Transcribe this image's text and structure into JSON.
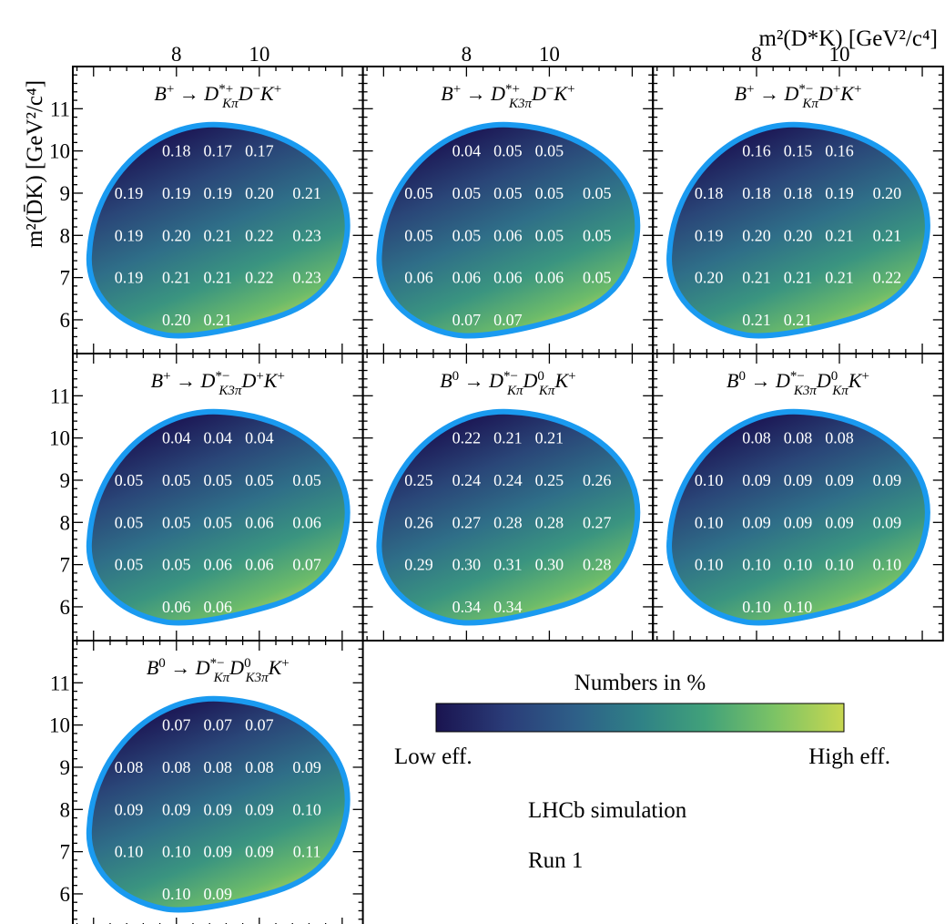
{
  "figure": {
    "x_axis_label": "m²(D*K) [GeV²/c⁴]",
    "y_axis_label": "m²(D̄K) [GeV²/c⁴]",
    "legend": {
      "title": "Numbers in %",
      "low_label": "Low eff.",
      "high_label": "High eff."
    },
    "experiment_label": "LHCb simulation",
    "run_label": "Run 1",
    "colormap": [
      "#1a1450",
      "#2a3c78",
      "#2e5f88",
      "#2f8186",
      "#41a17a",
      "#7cc365",
      "#c7d751"
    ],
    "boundary_color": "#1a9af0",
    "x_tick_labels": [
      "8",
      "10"
    ],
    "y_tick_labels": [
      "6",
      "7",
      "8",
      "9",
      "10",
      "11"
    ]
  },
  "chart_data": [
    {
      "type": "heatmap",
      "title": "B⁺ → D*⁺(Kπ) D⁻ K⁺",
      "decay": {
        "lead": "B",
        "lead_sup": "+",
        "d1_sup": "*+",
        "d1_sub": "Kπ",
        "d2_sup": "−",
        "d2_sub": "",
        "tail": "K",
        "tail_sup": "+"
      },
      "xlim": [
        5.5,
        12.5
      ],
      "ylim": [
        5.2,
        12.0
      ],
      "rows": [
        {
          "y": 10,
          "cells": [
            {
              "x": 8.0,
              "v": "0.18"
            },
            {
              "x": 9.0,
              "v": "0.17"
            },
            {
              "x": 10.0,
              "v": "0.17"
            }
          ]
        },
        {
          "y": 9,
          "cells": [
            {
              "x": 6.85,
              "v": "0.19"
            },
            {
              "x": 8.0,
              "v": "0.19"
            },
            {
              "x": 9.0,
              "v": "0.19"
            },
            {
              "x": 10.0,
              "v": "0.20"
            },
            {
              "x": 11.15,
              "v": "0.21"
            }
          ]
        },
        {
          "y": 8,
          "cells": [
            {
              "x": 6.85,
              "v": "0.19"
            },
            {
              "x": 8.0,
              "v": "0.20"
            },
            {
              "x": 9.0,
              "v": "0.21"
            },
            {
              "x": 10.0,
              "v": "0.22"
            },
            {
              "x": 11.15,
              "v": "0.23"
            }
          ]
        },
        {
          "y": 7,
          "cells": [
            {
              "x": 6.85,
              "v": "0.19"
            },
            {
              "x": 8.0,
              "v": "0.21"
            },
            {
              "x": 9.0,
              "v": "0.21"
            },
            {
              "x": 10.0,
              "v": "0.22"
            },
            {
              "x": 11.15,
              "v": "0.23"
            }
          ]
        },
        {
          "y": 6,
          "cells": [
            {
              "x": 8.0,
              "v": "0.20"
            },
            {
              "x": 9.0,
              "v": "0.21"
            }
          ]
        }
      ]
    },
    {
      "type": "heatmap",
      "title": "B⁺ → D*⁺(K3π) D⁻ K⁺",
      "decay": {
        "lead": "B",
        "lead_sup": "+",
        "d1_sup": "*+",
        "d1_sub": "K3π",
        "d2_sup": "−",
        "d2_sub": "",
        "tail": "K",
        "tail_sup": "+"
      },
      "xlim": [
        5.5,
        12.5
      ],
      "ylim": [
        5.2,
        12.0
      ],
      "rows": [
        {
          "y": 10,
          "cells": [
            {
              "x": 8.0,
              "v": "0.04"
            },
            {
              "x": 9.0,
              "v": "0.05"
            },
            {
              "x": 10.0,
              "v": "0.05"
            }
          ]
        },
        {
          "y": 9,
          "cells": [
            {
              "x": 6.85,
              "v": "0.05"
            },
            {
              "x": 8.0,
              "v": "0.05"
            },
            {
              "x": 9.0,
              "v": "0.05"
            },
            {
              "x": 10.0,
              "v": "0.05"
            },
            {
              "x": 11.15,
              "v": "0.05"
            }
          ]
        },
        {
          "y": 8,
          "cells": [
            {
              "x": 6.85,
              "v": "0.05"
            },
            {
              "x": 8.0,
              "v": "0.05"
            },
            {
              "x": 9.0,
              "v": "0.06"
            },
            {
              "x": 10.0,
              "v": "0.05"
            },
            {
              "x": 11.15,
              "v": "0.05"
            }
          ]
        },
        {
          "y": 7,
          "cells": [
            {
              "x": 6.85,
              "v": "0.06"
            },
            {
              "x": 8.0,
              "v": "0.06"
            },
            {
              "x": 9.0,
              "v": "0.06"
            },
            {
              "x": 10.0,
              "v": "0.06"
            },
            {
              "x": 11.15,
              "v": "0.05"
            }
          ]
        },
        {
          "y": 6,
          "cells": [
            {
              "x": 8.0,
              "v": "0.07"
            },
            {
              "x": 9.0,
              "v": "0.07"
            }
          ]
        }
      ]
    },
    {
      "type": "heatmap",
      "title": "B⁺ → D*⁻(Kπ) D⁺ K⁺",
      "decay": {
        "lead": "B",
        "lead_sup": "+",
        "d1_sup": "*−",
        "d1_sub": "Kπ",
        "d2_sup": "+",
        "d2_sub": "",
        "tail": "K",
        "tail_sup": "+"
      },
      "xlim": [
        5.5,
        12.5
      ],
      "ylim": [
        5.2,
        12.0
      ],
      "rows": [
        {
          "y": 10,
          "cells": [
            {
              "x": 8.0,
              "v": "0.16"
            },
            {
              "x": 9.0,
              "v": "0.15"
            },
            {
              "x": 10.0,
              "v": "0.16"
            }
          ]
        },
        {
          "y": 9,
          "cells": [
            {
              "x": 6.85,
              "v": "0.18"
            },
            {
              "x": 8.0,
              "v": "0.18"
            },
            {
              "x": 9.0,
              "v": "0.18"
            },
            {
              "x": 10.0,
              "v": "0.19"
            },
            {
              "x": 11.15,
              "v": "0.20"
            }
          ]
        },
        {
          "y": 8,
          "cells": [
            {
              "x": 6.85,
              "v": "0.19"
            },
            {
              "x": 8.0,
              "v": "0.20"
            },
            {
              "x": 9.0,
              "v": "0.20"
            },
            {
              "x": 10.0,
              "v": "0.21"
            },
            {
              "x": 11.15,
              "v": "0.21"
            }
          ]
        },
        {
          "y": 7,
          "cells": [
            {
              "x": 6.85,
              "v": "0.20"
            },
            {
              "x": 8.0,
              "v": "0.21"
            },
            {
              "x": 9.0,
              "v": "0.21"
            },
            {
              "x": 10.0,
              "v": "0.21"
            },
            {
              "x": 11.15,
              "v": "0.22"
            }
          ]
        },
        {
          "y": 6,
          "cells": [
            {
              "x": 8.0,
              "v": "0.21"
            },
            {
              "x": 9.0,
              "v": "0.21"
            }
          ]
        }
      ]
    },
    {
      "type": "heatmap",
      "title": "B⁺ → D*⁻(K3π) D⁺ K⁺",
      "decay": {
        "lead": "B",
        "lead_sup": "+",
        "d1_sup": "*−",
        "d1_sub": "K3π",
        "d2_sup": "+",
        "d2_sub": "",
        "tail": "K",
        "tail_sup": "+"
      },
      "xlim": [
        5.5,
        12.5
      ],
      "ylim": [
        5.2,
        12.0
      ],
      "rows": [
        {
          "y": 10,
          "cells": [
            {
              "x": 8.0,
              "v": "0.04"
            },
            {
              "x": 9.0,
              "v": "0.04"
            },
            {
              "x": 10.0,
              "v": "0.04"
            }
          ]
        },
        {
          "y": 9,
          "cells": [
            {
              "x": 6.85,
              "v": "0.05"
            },
            {
              "x": 8.0,
              "v": "0.05"
            },
            {
              "x": 9.0,
              "v": "0.05"
            },
            {
              "x": 10.0,
              "v": "0.05"
            },
            {
              "x": 11.15,
              "v": "0.05"
            }
          ]
        },
        {
          "y": 8,
          "cells": [
            {
              "x": 6.85,
              "v": "0.05"
            },
            {
              "x": 8.0,
              "v": "0.05"
            },
            {
              "x": 9.0,
              "v": "0.05"
            },
            {
              "x": 10.0,
              "v": "0.06"
            },
            {
              "x": 11.15,
              "v": "0.06"
            }
          ]
        },
        {
          "y": 7,
          "cells": [
            {
              "x": 6.85,
              "v": "0.05"
            },
            {
              "x": 8.0,
              "v": "0.05"
            },
            {
              "x": 9.0,
              "v": "0.06"
            },
            {
              "x": 10.0,
              "v": "0.06"
            },
            {
              "x": 11.15,
              "v": "0.07"
            }
          ]
        },
        {
          "y": 6,
          "cells": [
            {
              "x": 8.0,
              "v": "0.06"
            },
            {
              "x": 9.0,
              "v": "0.06"
            }
          ]
        }
      ]
    },
    {
      "type": "heatmap",
      "title": "B⁰ → D*⁻(Kπ) D⁰(Kπ) K⁺",
      "decay": {
        "lead": "B",
        "lead_sup": "0",
        "d1_sup": "*−",
        "d1_sub": "Kπ",
        "d2_sup": "0",
        "d2_sub": "Kπ",
        "tail": "K",
        "tail_sup": "+"
      },
      "xlim": [
        5.5,
        12.5
      ],
      "ylim": [
        5.2,
        12.0
      ],
      "rows": [
        {
          "y": 10,
          "cells": [
            {
              "x": 8.0,
              "v": "0.22"
            },
            {
              "x": 9.0,
              "v": "0.21"
            },
            {
              "x": 10.0,
              "v": "0.21"
            }
          ]
        },
        {
          "y": 9,
          "cells": [
            {
              "x": 6.85,
              "v": "0.25"
            },
            {
              "x": 8.0,
              "v": "0.24"
            },
            {
              "x": 9.0,
              "v": "0.24"
            },
            {
              "x": 10.0,
              "v": "0.25"
            },
            {
              "x": 11.15,
              "v": "0.26"
            }
          ]
        },
        {
          "y": 8,
          "cells": [
            {
              "x": 6.85,
              "v": "0.26"
            },
            {
              "x": 8.0,
              "v": "0.27"
            },
            {
              "x": 9.0,
              "v": "0.28"
            },
            {
              "x": 10.0,
              "v": "0.28"
            },
            {
              "x": 11.15,
              "v": "0.27"
            }
          ]
        },
        {
          "y": 7,
          "cells": [
            {
              "x": 6.85,
              "v": "0.29"
            },
            {
              "x": 8.0,
              "v": "0.30"
            },
            {
              "x": 9.0,
              "v": "0.31"
            },
            {
              "x": 10.0,
              "v": "0.30"
            },
            {
              "x": 11.15,
              "v": "0.28"
            }
          ]
        },
        {
          "y": 6,
          "cells": [
            {
              "x": 8.0,
              "v": "0.34"
            },
            {
              "x": 9.0,
              "v": "0.34"
            }
          ]
        }
      ]
    },
    {
      "type": "heatmap",
      "title": "B⁰ → D*⁻(K3π) D⁰(Kπ) K⁺",
      "decay": {
        "lead": "B",
        "lead_sup": "0",
        "d1_sup": "*−",
        "d1_sub": "K3π",
        "d2_sup": "0",
        "d2_sub": "Kπ",
        "tail": "K",
        "tail_sup": "+"
      },
      "xlim": [
        5.5,
        12.5
      ],
      "ylim": [
        5.2,
        12.0
      ],
      "rows": [
        {
          "y": 10,
          "cells": [
            {
              "x": 8.0,
              "v": "0.08"
            },
            {
              "x": 9.0,
              "v": "0.08"
            },
            {
              "x": 10.0,
              "v": "0.08"
            }
          ]
        },
        {
          "y": 9,
          "cells": [
            {
              "x": 6.85,
              "v": "0.10"
            },
            {
              "x": 8.0,
              "v": "0.09"
            },
            {
              "x": 9.0,
              "v": "0.09"
            },
            {
              "x": 10.0,
              "v": "0.09"
            },
            {
              "x": 11.15,
              "v": "0.09"
            }
          ]
        },
        {
          "y": 8,
          "cells": [
            {
              "x": 6.85,
              "v": "0.10"
            },
            {
              "x": 8.0,
              "v": "0.09"
            },
            {
              "x": 9.0,
              "v": "0.09"
            },
            {
              "x": 10.0,
              "v": "0.09"
            },
            {
              "x": 11.15,
              "v": "0.09"
            }
          ]
        },
        {
          "y": 7,
          "cells": [
            {
              "x": 6.85,
              "v": "0.10"
            },
            {
              "x": 8.0,
              "v": "0.10"
            },
            {
              "x": 9.0,
              "v": "0.10"
            },
            {
              "x": 10.0,
              "v": "0.10"
            },
            {
              "x": 11.15,
              "v": "0.10"
            }
          ]
        },
        {
          "y": 6,
          "cells": [
            {
              "x": 8.0,
              "v": "0.10"
            },
            {
              "x": 9.0,
              "v": "0.10"
            }
          ]
        }
      ]
    },
    {
      "type": "heatmap",
      "title": "B⁰ → D*⁻(Kπ) D⁰(K3π) K⁺",
      "decay": {
        "lead": "B",
        "lead_sup": "0",
        "d1_sup": "*−",
        "d1_sub": "Kπ",
        "d2_sup": "0",
        "d2_sub": "K3π",
        "tail": "K",
        "tail_sup": "+"
      },
      "xlim": [
        5.5,
        12.5
      ],
      "ylim": [
        5.2,
        12.0
      ],
      "rows": [
        {
          "y": 10,
          "cells": [
            {
              "x": 8.0,
              "v": "0.07"
            },
            {
              "x": 9.0,
              "v": "0.07"
            },
            {
              "x": 10.0,
              "v": "0.07"
            }
          ]
        },
        {
          "y": 9,
          "cells": [
            {
              "x": 6.85,
              "v": "0.08"
            },
            {
              "x": 8.0,
              "v": "0.08"
            },
            {
              "x": 9.0,
              "v": "0.08"
            },
            {
              "x": 10.0,
              "v": "0.08"
            },
            {
              "x": 11.15,
              "v": "0.09"
            }
          ]
        },
        {
          "y": 8,
          "cells": [
            {
              "x": 6.85,
              "v": "0.09"
            },
            {
              "x": 8.0,
              "v": "0.09"
            },
            {
              "x": 9.0,
              "v": "0.09"
            },
            {
              "x": 10.0,
              "v": "0.09"
            },
            {
              "x": 11.15,
              "v": "0.10"
            }
          ]
        },
        {
          "y": 7,
          "cells": [
            {
              "x": 6.85,
              "v": "0.10"
            },
            {
              "x": 8.0,
              "v": "0.10"
            },
            {
              "x": 9.0,
              "v": "0.09"
            },
            {
              "x": 10.0,
              "v": "0.09"
            },
            {
              "x": 11.15,
              "v": "0.11"
            }
          ]
        },
        {
          "y": 6,
          "cells": [
            {
              "x": 8.0,
              "v": "0.10"
            },
            {
              "x": 9.0,
              "v": "0.09"
            }
          ]
        }
      ]
    }
  ]
}
